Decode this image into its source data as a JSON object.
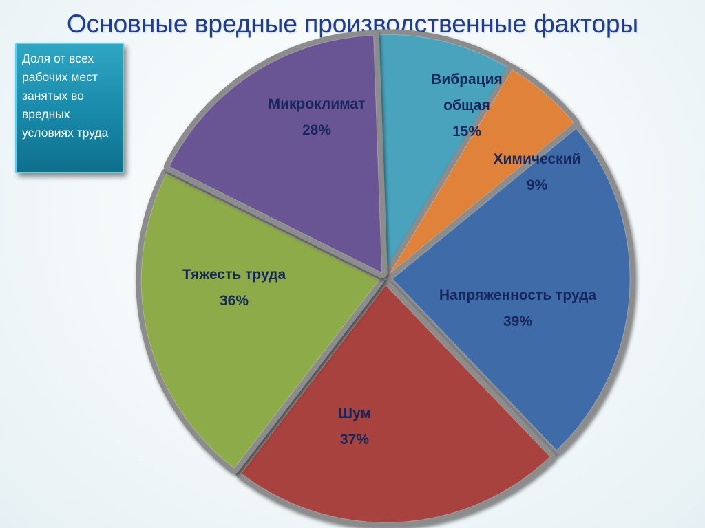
{
  "title": "Основные вредные производственные факторы",
  "note": "Доля от всех рабочих мест занятых во вредных условиях труда",
  "chart_data": {
    "type": "pie",
    "title": "Основные вредные производственные факторы",
    "unit": "%",
    "slices": [
      {
        "label": "Вибрация общая",
        "value": 15,
        "display": "15%",
        "color": "#4aa3bd"
      },
      {
        "label": "Химический",
        "value": 9,
        "display": "9%",
        "color": "#e0823a"
      },
      {
        "label": "Напряженность труда",
        "value": 39,
        "display": "39%",
        "color": "#3f6ca9"
      },
      {
        "label": "Шум",
        "value": 37,
        "display": "37%",
        "color": "#a8423f"
      },
      {
        "label": "Тяжесть труда",
        "value": 36,
        "display": "36%",
        "color": "#8eab4a"
      },
      {
        "label": "Микроклимат",
        "value": 28,
        "display": "28%",
        "color": "#6a5594"
      }
    ]
  }
}
